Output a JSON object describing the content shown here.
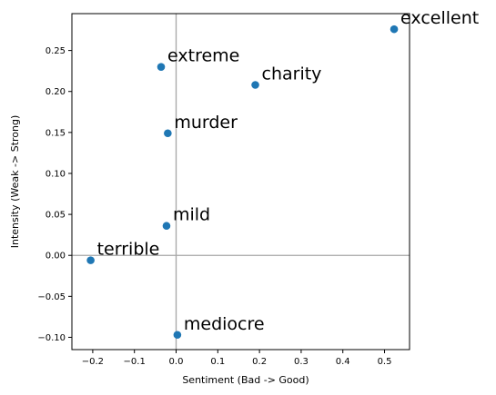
{
  "chart_data": {
    "type": "scatter",
    "xlabel": "Sentiment (Bad -> Good)",
    "ylabel": "Intensity (Weak -> Strong)",
    "xlim": [
      -0.25,
      0.56
    ],
    "ylim": [
      -0.115,
      0.295
    ],
    "xticks": [
      -0.2,
      -0.1,
      0.0,
      0.1,
      0.2,
      0.3,
      0.4,
      0.5
    ],
    "xtick_labels": [
      "−0.2",
      "−0.1",
      "0.0",
      "0.1",
      "0.2",
      "0.3",
      "0.4",
      "0.5"
    ],
    "yticks": [
      -0.1,
      -0.05,
      0.0,
      0.05,
      0.1,
      0.15,
      0.2,
      0.25
    ],
    "ytick_labels": [
      "−0.10",
      "−0.05",
      "0.00",
      "0.05",
      "0.10",
      "0.15",
      "0.20",
      "0.25"
    ],
    "reference_lines": {
      "x": 0,
      "y": 0,
      "color": "#a6a6a6"
    },
    "grid": false,
    "point_color": "#1f77b4",
    "points": [
      {
        "label": "excellent",
        "x": 0.523,
        "y": 0.276
      },
      {
        "label": "extreme",
        "x": -0.036,
        "y": 0.23
      },
      {
        "label": "charity",
        "x": 0.19,
        "y": 0.208
      },
      {
        "label": "murder",
        "x": -0.02,
        "y": 0.149
      },
      {
        "label": "mild",
        "x": -0.023,
        "y": 0.036
      },
      {
        "label": "terrible",
        "x": -0.205,
        "y": -0.006
      },
      {
        "label": "mediocre",
        "x": 0.003,
        "y": -0.097
      }
    ]
  }
}
